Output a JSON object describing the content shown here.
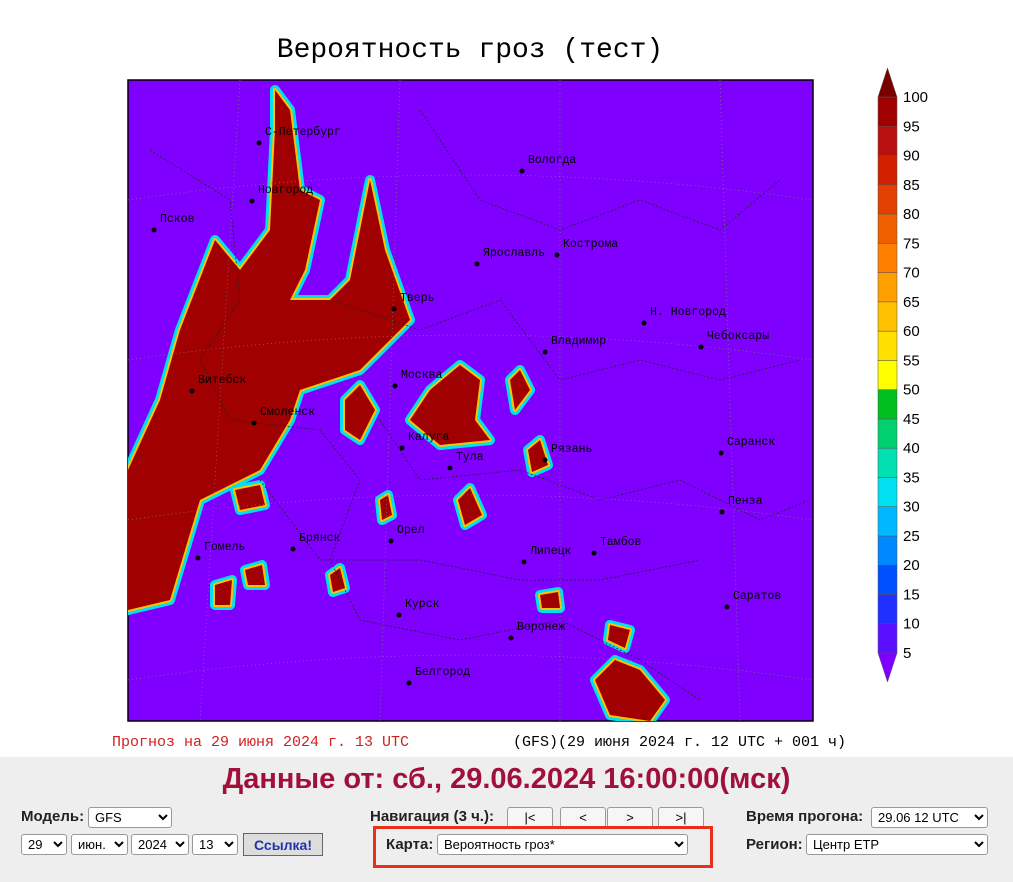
{
  "map": {
    "title": "Вероятность гроз (тест)",
    "cities": [
      "С-Петербург",
      "Новгород",
      "Псков",
      "Вологда",
      "Кострома",
      "Ярославль",
      "Тверь",
      "Н. Новгород",
      "Чебоксары",
      "Владимир",
      "Москва",
      "Витебск",
      "Смоленск",
      "Калуга",
      "Тула",
      "Рязань",
      "Саранск",
      "Пенза",
      "Орел",
      "Брянск",
      "Гомель",
      "Липецк",
      "Тамбов",
      "Курск",
      "Саратов",
      "Воронеж",
      "Белгород"
    ],
    "footer_left": "Прогноз на 29 июня 2024 г. 13 UTC",
    "footer_right": "(GFS)(29 июня 2024 г. 12 UTC + 001 ч)"
  },
  "colorbar": {
    "labels": [
      "5",
      "10",
      "15",
      "20",
      "25",
      "30",
      "35",
      "40",
      "45",
      "50",
      "55",
      "60",
      "65",
      "70",
      "75",
      "80",
      "85",
      "90",
      "95",
      "100"
    ],
    "colors": [
      "#7f00ff",
      "#5a10ff",
      "#2030ff",
      "#0050ff",
      "#0088ff",
      "#00b8ff",
      "#00e0f0",
      "#00e0b0",
      "#00d070",
      "#00c020",
      "#ffff00",
      "#ffe000",
      "#ffc000",
      "#ffa000",
      "#ff8000",
      "#f06000",
      "#e04000",
      "#d02000",
      "#b81010",
      "#a00000",
      "#7a0000"
    ]
  },
  "panel": {
    "header": "Данные от: сб., 29.06.2024 16:00:00(мск)",
    "model_label": "Модель:",
    "model": "GFS",
    "day": "29",
    "month": "июн.",
    "year": "2024",
    "hour": "13",
    "link": "Ссылка!",
    "nav_label": "Навигация (3 ч.):",
    "nav_buttons": [
      "|<",
      "<",
      ">",
      ">|"
    ],
    "map_label": "Карта:",
    "map": "Вероятность гроз*",
    "run_label": "Время прогона:",
    "run": "29.06 12 UTC",
    "region_label": "Регион:",
    "region": "Центр ЕТР"
  }
}
